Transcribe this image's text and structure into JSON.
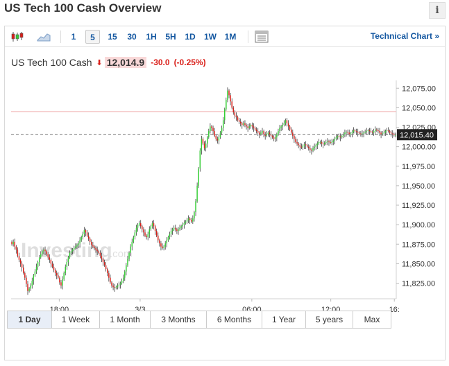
{
  "header": {
    "title": "US Tech 100 Cash Overview",
    "info_label": "i"
  },
  "toolbar": {
    "icons": [
      "candlestick-icon",
      "area-chart-icon",
      "settings-panel-icon"
    ],
    "periods": [
      "1",
      "5",
      "15",
      "30",
      "1H",
      "5H",
      "1D",
      "1W",
      "1M"
    ],
    "active_period": "5",
    "technical_link": "Technical Chart »"
  },
  "quote": {
    "name": "US Tech 100 Cash",
    "price": "12,014.9",
    "change": "-30.0",
    "change_pct": "(-0.25%)",
    "down_color": "#d91e18",
    "up_color": "#32cd32"
  },
  "watermark": {
    "text": "Investing",
    "suffix": ".com"
  },
  "range_buttons": {
    "items": [
      "1 Day",
      "1 Week",
      "1 Month",
      "3 Months",
      "6 Months",
      "1 Year",
      "5 years",
      "Max"
    ],
    "active": "1 Day"
  },
  "chart_data": {
    "type": "candlestick",
    "current_price_label": "12,015.40",
    "current_price": 12015.4,
    "resistance_level": 12045,
    "ylim": [
      11805,
      12085
    ],
    "y_ticks": [
      {
        "value": 12075,
        "label": "12,075.00"
      },
      {
        "value": 12050,
        "label": "12,050.00"
      },
      {
        "value": 12025,
        "label": "12,025.00"
      },
      {
        "value": 12000,
        "label": "12,000.00"
      },
      {
        "value": 11975,
        "label": "11,975.00"
      },
      {
        "value": 11950,
        "label": "11,950.00"
      },
      {
        "value": 11925,
        "label": "11,925.00"
      },
      {
        "value": 11900,
        "label": "11,900.00"
      },
      {
        "value": 11875,
        "label": "11,875.00"
      },
      {
        "value": 11850,
        "label": "11,850.00"
      },
      {
        "value": 11825,
        "label": "11,825.00"
      }
    ],
    "x_ticks": [
      {
        "pos": 0.125,
        "label": "18:00"
      },
      {
        "pos": 0.335,
        "label": "3/3"
      },
      {
        "pos": 0.625,
        "label": "06:00"
      },
      {
        "pos": 0.83,
        "label": "12:00"
      },
      {
        "pos": 0.995,
        "label": "16:"
      }
    ],
    "close": [
      11875,
      11878,
      11872,
      11868,
      11860,
      11855,
      11850,
      11845,
      11838,
      11832,
      11824,
      11815,
      11818,
      11822,
      11828,
      11835,
      11840,
      11846,
      11852,
      11858,
      11862,
      11866,
      11868,
      11866,
      11862,
      11858,
      11855,
      11850,
      11846,
      11842,
      11838,
      11835,
      11832,
      11826,
      11822,
      11830,
      11838,
      11846,
      11852,
      11858,
      11864,
      11866,
      11868,
      11870,
      11872,
      11874,
      11876,
      11880,
      11884,
      11888,
      11893,
      11890,
      11886,
      11882,
      11878,
      11874,
      11872,
      11870,
      11868,
      11866,
      11864,
      11860,
      11856,
      11852,
      11848,
      11843,
      11838,
      11832,
      11826,
      11822,
      11820,
      11819,
      11820,
      11822,
      11823,
      11825,
      11828,
      11832,
      11840,
      11848,
      11856,
      11864,
      11872,
      11878,
      11884,
      11890,
      11896,
      11900,
      11902,
      11898,
      11894,
      11890,
      11886,
      11884,
      11888,
      11894,
      11898,
      11902,
      11898,
      11892,
      11886,
      11880,
      11876,
      11872,
      11870,
      11872,
      11876,
      11880,
      11884,
      11888,
      11892,
      11894,
      11896,
      11894,
      11892,
      11894,
      11896,
      11898,
      11900,
      11902,
      11904,
      11906,
      11908,
      11906,
      11904,
      11908,
      11916,
      11930,
      11950,
      11972,
      11995,
      12010,
      12004,
      11998,
      12004,
      12012,
      12020,
      12026,
      12024,
      12020,
      12014,
      12010,
      12008,
      12012,
      12018,
      12024,
      12034,
      12048,
      12060,
      12072,
      12066,
      12058,
      12050,
      12044,
      12040,
      12038,
      12034,
      12032,
      12030,
      12028,
      12030,
      12028,
      12026,
      12024,
      12026,
      12028,
      12026,
      12024,
      12022,
      12020,
      12018,
      12016,
      12018,
      12020,
      12016,
      12014,
      12016,
      12018,
      12016,
      12014,
      12012,
      12010,
      12012,
      12016,
      12020,
      12024,
      12026,
      12028,
      12030,
      12034,
      12030,
      12026,
      12022,
      12018,
      12014,
      12010,
      12006,
      12004,
      12002,
      12000,
      11999,
      12001,
      12003,
      12002,
      12000,
      11998,
      11996,
      11995,
      11998,
      12000,
      12002,
      12004,
      12006,
      12006,
      12004,
      12003,
      12005,
      12006,
      12007,
      12006,
      12005,
      12006,
      12008,
      12010,
      12012,
      12014,
      12013,
      12012,
      12014,
      12016,
      12018,
      12019,
      12018,
      12016,
      12017,
      12019,
      12021,
      12020,
      12019,
      12018,
      12017,
      12016,
      12017,
      12018,
      12019,
      12020,
      12021,
      12020,
      12019,
      12018,
      12020,
      12022,
      12021,
      12020,
      12018,
      12016,
      12017,
      12018,
      12020,
      12021,
      12020,
      12018,
      12017,
      12016,
      12015,
      12015
    ]
  }
}
